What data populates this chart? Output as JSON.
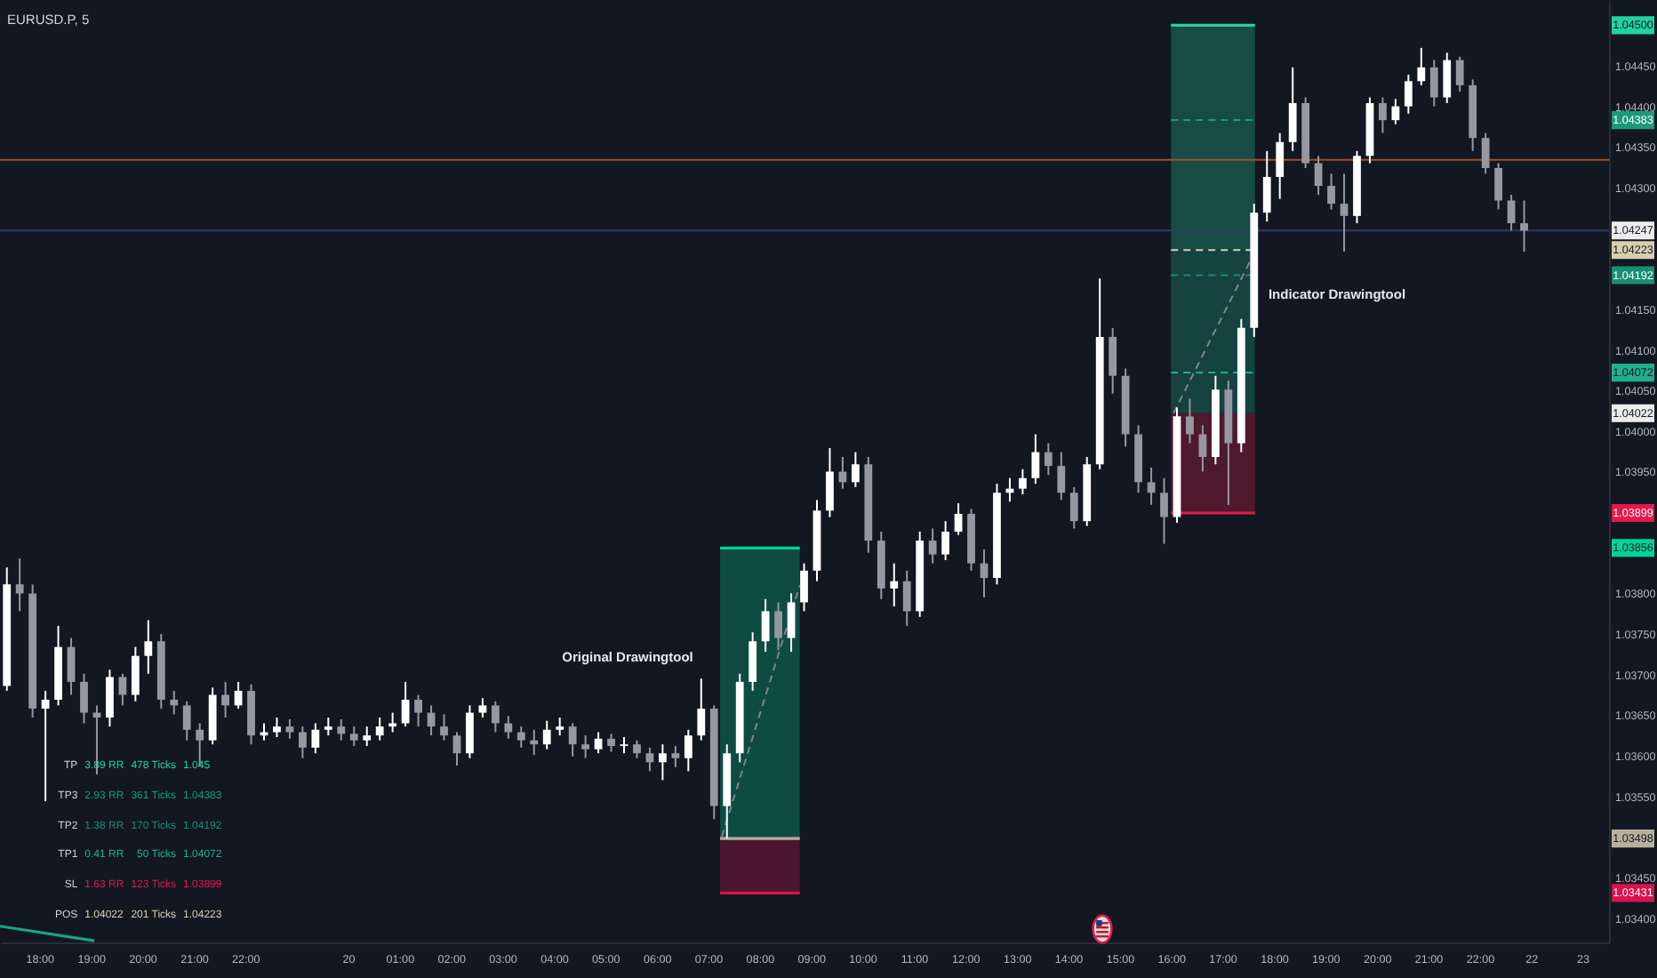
{
  "chart_data": {
    "type": "candlestick",
    "title": "EURUSD.P, 5",
    "xlim": [
      "--12-19T17:14",
      "--12-21T00:31"
    ],
    "ylim": [
      1.0337,
      1.04531
    ],
    "xticks": [
      {
        "value": "--12-19T18:00",
        "label": "18:00"
      },
      {
        "value": "--12-19T19:00",
        "label": "19:00"
      },
      {
        "value": "--12-19T20:00",
        "label": "20:00"
      },
      {
        "value": "--12-19T21:00",
        "label": "21:00"
      },
      {
        "value": "--12-19T22:00",
        "label": "22:00"
      },
      {
        "value": "--12-20T00:00",
        "label": "20"
      },
      {
        "value": "--12-20T01:00",
        "label": "01:00"
      },
      {
        "value": "--12-20T02:00",
        "label": "02:00"
      },
      {
        "value": "--12-20T03:00",
        "label": "03:00"
      },
      {
        "value": "--12-20T04:00",
        "label": "04:00"
      },
      {
        "value": "--12-20T05:00",
        "label": "05:00"
      },
      {
        "value": "--12-20T06:00",
        "label": "06:00"
      },
      {
        "value": "--12-20T07:00",
        "label": "07:00"
      },
      {
        "value": "--12-20T08:00",
        "label": "08:00"
      },
      {
        "value": "--12-20T09:00",
        "label": "09:00"
      },
      {
        "value": "--12-20T10:00",
        "label": "10:00"
      },
      {
        "value": "--12-20T11:00",
        "label": "11:00"
      },
      {
        "value": "--12-20T12:00",
        "label": "12:00"
      },
      {
        "value": "--12-20T13:00",
        "label": "13:00"
      },
      {
        "value": "--12-20T14:00",
        "label": "14:00"
      },
      {
        "value": "--12-20T15:00",
        "label": "15:00"
      },
      {
        "value": "--12-20T16:00",
        "label": "16:00"
      },
      {
        "value": "--12-20T17:00",
        "label": "17:00"
      },
      {
        "value": "--12-20T18:00",
        "label": "18:00"
      },
      {
        "value": "--12-20T19:00",
        "label": "19:00"
      },
      {
        "value": "--12-20T20:00",
        "label": "20:00"
      },
      {
        "value": "--12-20T21:00",
        "label": "21:00"
      },
      {
        "value": "--12-20T22:00",
        "label": "22:00"
      },
      {
        "value": "--12-20T23:00",
        "label": "22"
      },
      {
        "value": "--12-21T00:00",
        "label": "23"
      }
    ],
    "yticks": [
      {
        "value": 1.0445,
        "label": "1.04450"
      },
      {
        "value": 1.044,
        "label": "1.04400"
      },
      {
        "value": 1.0435,
        "label": "1.04350"
      },
      {
        "value": 1.043,
        "label": "1.04300"
      },
      {
        "value": 1.0415,
        "label": "1.04150"
      },
      {
        "value": 1.041,
        "label": "1.04100"
      },
      {
        "value": 1.0405,
        "label": "1.04050"
      },
      {
        "value": 1.04,
        "label": "1.04000"
      },
      {
        "value": 1.0395,
        "label": "1.03950"
      },
      {
        "value": 1.038,
        "label": "1.03800"
      },
      {
        "value": 1.0375,
        "label": "1.03750"
      },
      {
        "value": 1.037,
        "label": "1.03700"
      },
      {
        "value": 1.0365,
        "label": "1.03650"
      },
      {
        "value": 1.036,
        "label": "1.03600"
      },
      {
        "value": 1.0355,
        "label": "1.03550"
      },
      {
        "value": 1.0345,
        "label": "1.03450"
      },
      {
        "value": 1.034,
        "label": "1.03400"
      }
    ],
    "x": [
      "--12-19T17:22",
      "--12-19T17:37",
      "--12-19T17:52",
      "--12-19T18:07",
      "--12-19T18:22",
      "--12-19T18:37",
      "--12-19T18:52",
      "--12-19T19:07",
      "--12-19T19:22",
      "--12-19T19:37",
      "--12-19T19:52",
      "--12-19T20:07",
      "--12-19T20:22",
      "--12-19T20:37",
      "--12-19T20:52",
      "--12-19T21:07",
      "--12-19T21:22",
      "--12-19T21:37",
      "--12-19T21:52",
      "--12-19T22:07",
      "--12-19T22:22",
      "--12-19T22:37",
      "--12-19T22:52",
      "--12-19T23:07",
      "--12-19T23:22",
      "--12-19T23:37",
      "--12-19T23:52",
      "--12-20T00:07",
      "--12-20T00:22",
      "--12-20T00:37",
      "--12-20T00:52",
      "--12-20T01:07",
      "--12-20T01:22",
      "--12-20T01:37",
      "--12-20T01:52",
      "--12-20T02:07",
      "--12-20T02:22",
      "--12-20T02:37",
      "--12-20T02:52",
      "--12-20T03:07",
      "--12-20T03:22",
      "--12-20T03:37",
      "--12-20T03:52",
      "--12-20T04:07",
      "--12-20T04:22",
      "--12-20T04:37",
      "--12-20T04:52",
      "--12-20T05:07",
      "--12-20T05:22",
      "--12-20T05:37",
      "--12-20T05:52",
      "--12-20T06:07",
      "--12-20T06:22",
      "--12-20T06:37",
      "--12-20T06:52",
      "--12-20T07:07",
      "--12-20T07:22",
      "--12-20T07:37",
      "--12-20T07:52",
      "--12-20T08:07",
      "--12-20T08:22",
      "--12-20T08:37",
      "--12-20T08:52",
      "--12-20T09:07",
      "--12-20T09:22",
      "--12-20T09:37",
      "--12-20T09:52",
      "--12-20T10:07",
      "--12-20T10:22",
      "--12-20T10:37",
      "--12-20T10:52",
      "--12-20T11:07",
      "--12-20T11:22",
      "--12-20T11:37",
      "--12-20T11:52",
      "--12-20T12:07",
      "--12-20T12:22",
      "--12-20T12:37",
      "--12-20T12:52",
      "--12-20T13:07",
      "--12-20T13:22",
      "--12-20T13:37",
      "--12-20T13:52",
      "--12-20T14:07",
      "--12-20T14:22",
      "--12-20T14:37",
      "--12-20T14:52",
      "--12-20T15:07",
      "--12-20T15:22",
      "--12-20T15:37",
      "--12-20T15:52",
      "--12-20T16:07",
      "--12-20T16:22",
      "--12-20T16:37",
      "--12-20T16:52",
      "--12-20T17:07",
      "--12-20T17:22",
      "--12-20T17:37",
      "--12-20T17:52",
      "--12-20T18:07",
      "--12-20T18:22",
      "--12-20T18:37",
      "--12-20T18:52",
      "--12-20T19:07",
      "--12-20T19:22",
      "--12-20T19:37",
      "--12-20T19:52",
      "--12-20T20:07",
      "--12-20T20:22",
      "--12-20T20:37",
      "--12-20T20:52",
      "--12-20T21:07",
      "--12-20T21:22",
      "--12-20T21:37",
      "--12-20T21:52",
      "--12-20T22:07",
      "--12-20T22:22",
      "--12-20T22:37",
      "--12-20T22:52"
    ],
    "ohlc": [
      [
        1.03686,
        1.03832,
        1.0368,
        1.03811
      ],
      [
        1.03811,
        1.03843,
        1.03778,
        1.038
      ],
      [
        1.038,
        1.03811,
        1.03647,
        1.03658
      ],
      [
        1.03658,
        1.0368,
        1.03544,
        1.03669
      ],
      [
        1.03669,
        1.0376,
        1.03662,
        1.03734
      ],
      [
        1.03734,
        1.03745,
        1.03675,
        1.03691
      ],
      [
        1.03691,
        1.03701,
        1.0364,
        1.03653
      ],
      [
        1.03653,
        1.03662,
        1.03577,
        1.03647
      ],
      [
        1.03647,
        1.03706,
        1.03636,
        1.03697
      ],
      [
        1.03697,
        1.03701,
        1.03662,
        1.03675
      ],
      [
        1.03675,
        1.03734,
        1.03667,
        1.03723
      ],
      [
        1.03723,
        1.03767,
        1.03701,
        1.03741
      ],
      [
        1.03741,
        1.0375,
        1.03658,
        1.03669
      ],
      [
        1.03669,
        1.0368,
        1.03651,
        1.03662
      ],
      [
        1.03662,
        1.03667,
        1.03619,
        1.03632
      ],
      [
        1.03632,
        1.0364,
        1.03588,
        1.03619
      ],
      [
        1.03619,
        1.03684,
        1.03614,
        1.03675
      ],
      [
        1.03675,
        1.03691,
        1.03647,
        1.03662
      ],
      [
        1.03662,
        1.03691,
        1.03658,
        1.0368
      ],
      [
        1.0368,
        1.03688,
        1.03614,
        1.03625
      ],
      [
        1.03625,
        1.0364,
        1.03619,
        1.03629
      ],
      [
        1.03629,
        1.03647,
        1.03623,
        1.03636
      ],
      [
        1.03636,
        1.03645,
        1.03621,
        1.03629
      ],
      [
        1.03629,
        1.03636,
        1.03597,
        1.0361
      ],
      [
        1.0361,
        1.0364,
        1.03603,
        1.03632
      ],
      [
        1.03632,
        1.03647,
        1.03625,
        1.03636
      ],
      [
        1.03636,
        1.03645,
        1.03619,
        1.03627
      ],
      [
        1.03627,
        1.03636,
        1.03612,
        1.03619
      ],
      [
        1.03619,
        1.03636,
        1.03612,
        1.03625
      ],
      [
        1.03625,
        1.03647,
        1.03619,
        1.03636
      ],
      [
        1.03636,
        1.03653,
        1.03629,
        1.0364
      ],
      [
        1.0364,
        1.03691,
        1.03636,
        1.03669
      ],
      [
        1.03669,
        1.03675,
        1.03636,
        1.03653
      ],
      [
        1.03653,
        1.03662,
        1.03625,
        1.03636
      ],
      [
        1.03636,
        1.03651,
        1.03619,
        1.03625
      ],
      [
        1.03625,
        1.03629,
        1.03588,
        1.03603
      ],
      [
        1.03603,
        1.03662,
        1.03597,
        1.03653
      ],
      [
        1.03653,
        1.03671,
        1.03647,
        1.03662
      ],
      [
        1.03662,
        1.03667,
        1.03629,
        1.0364
      ],
      [
        1.0364,
        1.03649,
        1.03621,
        1.03629
      ],
      [
        1.03629,
        1.03636,
        1.0361,
        1.03619
      ],
      [
        1.03619,
        1.03632,
        1.03601,
        1.03614
      ],
      [
        1.03614,
        1.03643,
        1.03608,
        1.03632
      ],
      [
        1.03632,
        1.03647,
        1.03625,
        1.03636
      ],
      [
        1.03636,
        1.0364,
        1.03599,
        1.03614
      ],
      [
        1.03614,
        1.03625,
        1.03597,
        1.03608
      ],
      [
        1.03608,
        1.03629,
        1.03603,
        1.03621
      ],
      [
        1.03621,
        1.03627,
        1.03605,
        1.03612
      ],
      [
        1.03612,
        1.03623,
        1.03603,
        1.03614
      ],
      [
        1.03614,
        1.03619,
        1.03597,
        1.03603
      ],
      [
        1.03603,
        1.0361,
        1.03581,
        1.03592
      ],
      [
        1.03592,
        1.03614,
        1.0357,
        1.03603
      ],
      [
        1.03603,
        1.03612,
        1.03586,
        1.03597
      ],
      [
        1.03597,
        1.03632,
        1.03581,
        1.03625
      ],
      [
        1.03625,
        1.03695,
        1.03619,
        1.03658
      ],
      [
        1.03658,
        1.03662,
        1.03522,
        1.03538
      ],
      [
        1.03538,
        1.03614,
        1.03498,
        1.03603
      ],
      [
        1.03603,
        1.03701,
        1.03592,
        1.03691
      ],
      [
        1.03691,
        1.03752,
        1.0368,
        1.03741
      ],
      [
        1.03741,
        1.03793,
        1.03728,
        1.03778
      ],
      [
        1.03778,
        1.03789,
        1.0373,
        1.03745
      ],
      [
        1.03745,
        1.038,
        1.03728,
        1.03789
      ],
      [
        1.03789,
        1.03837,
        1.03778,
        1.03828
      ],
      [
        1.03828,
        1.03915,
        1.03815,
        1.03902
      ],
      [
        1.03902,
        1.03979,
        1.03894,
        1.0395
      ],
      [
        1.0395,
        1.03968,
        1.03929,
        1.03937
      ],
      [
        1.03937,
        1.03974,
        1.03931,
        1.03959
      ],
      [
        1.03959,
        1.03968,
        1.0385,
        1.03865
      ],
      [
        1.03865,
        1.03876,
        1.03793,
        1.03806
      ],
      [
        1.03806,
        1.03837,
        1.03784,
        1.03815
      ],
      [
        1.03815,
        1.03828,
        1.0376,
        1.03778
      ],
      [
        1.03778,
        1.03876,
        1.03771,
        1.03865
      ],
      [
        1.03865,
        1.0388,
        1.03837,
        1.03848
      ],
      [
        1.03848,
        1.03889,
        1.03841,
        1.03876
      ],
      [
        1.03876,
        1.03911,
        1.03872,
        1.03898
      ],
      [
        1.03898,
        1.03904,
        1.03828,
        1.03837
      ],
      [
        1.03837,
        1.03854,
        1.03795,
        1.03819
      ],
      [
        1.03819,
        1.03935,
        1.03811,
        1.03924
      ],
      [
        1.03924,
        1.03942,
        1.03913,
        1.03929
      ],
      [
        1.03929,
        1.03953,
        1.03922,
        1.03942
      ],
      [
        1.03942,
        1.03996,
        1.03935,
        1.03974
      ],
      [
        1.03974,
        1.03985,
        1.03946,
        1.03957
      ],
      [
        1.03957,
        1.03974,
        1.03915,
        1.03924
      ],
      [
        1.03924,
        1.03931,
        1.0388,
        1.03889
      ],
      [
        1.03889,
        1.03968,
        1.03883,
        1.03959
      ],
      [
        1.03959,
        1.04188,
        1.03953,
        1.04116
      ],
      [
        1.04116,
        1.04127,
        1.04046,
        1.04068
      ],
      [
        1.04068,
        1.04077,
        1.03981,
        1.03996
      ],
      [
        1.03996,
        1.04007,
        1.03924,
        1.03937
      ],
      [
        1.03937,
        1.03955,
        1.03909,
        1.03924
      ],
      [
        1.03924,
        1.03942,
        1.03861,
        1.03894
      ],
      [
        1.03894,
        1.04029,
        1.03887,
        1.04018
      ],
      [
        1.04018,
        1.0404,
        1.03985,
        1.03996
      ],
      [
        1.03996,
        1.04007,
        1.0395,
        1.03968
      ],
      [
        1.03968,
        1.04068,
        1.03959,
        1.04051
      ],
      [
        1.04051,
        1.04062,
        1.03909,
        1.03985
      ],
      [
        1.03985,
        1.04138,
        1.03974,
        1.04127
      ],
      [
        1.04127,
        1.0428,
        1.04116,
        1.04269
      ],
      [
        1.04269,
        1.04345,
        1.04258,
        1.04313
      ],
      [
        1.04313,
        1.04367,
        1.04286,
        1.04356
      ],
      [
        1.04356,
        1.04448,
        1.04345,
        1.04404
      ],
      [
        1.04404,
        1.04411,
        1.04324,
        1.0433
      ],
      [
        1.0433,
        1.04339,
        1.04291,
        1.04302
      ],
      [
        1.04302,
        1.04317,
        1.04273,
        1.0428
      ],
      [
        1.0428,
        1.04317,
        1.04221,
        1.04265
      ],
      [
        1.04265,
        1.04345,
        1.04256,
        1.04339
      ],
      [
        1.04339,
        1.04411,
        1.0433,
        1.04404
      ],
      [
        1.04404,
        1.04411,
        1.04367,
        1.04383
      ],
      [
        1.04383,
        1.04409,
        1.04378,
        1.044
      ],
      [
        1.044,
        1.04439,
        1.04391,
        1.04431
      ],
      [
        1.04431,
        1.04472,
        1.04426,
        1.04448
      ],
      [
        1.04448,
        1.04457,
        1.044,
        1.04411
      ],
      [
        1.04411,
        1.04466,
        1.04404,
        1.04457
      ],
      [
        1.04457,
        1.04461,
        1.04418,
        1.04426
      ],
      [
        1.04426,
        1.04433,
        1.04345,
        1.04361
      ],
      [
        1.04361,
        1.04367,
        1.04317,
        1.04324
      ],
      [
        1.04324,
        1.0433,
        1.04273,
        1.04284
      ],
      [
        1.04284,
        1.04291,
        1.04247,
        1.04256
      ],
      [
        1.04256,
        1.04284,
        1.04221,
        1.04247
      ]
    ],
    "colors": [
      "#ffffff",
      "#9598a1",
      "#9598a1",
      "#ffffff",
      "#ffffff",
      "#9598a1",
      "#9598a1",
      "#9598a1",
      "#ffffff",
      "#9598a1",
      "#ffffff",
      "#ffffff",
      "#9598a1",
      "#9598a1",
      "#9598a1",
      "#9598a1",
      "#ffffff",
      "#9598a1",
      "#ffffff",
      "#9598a1",
      "#ffffff",
      "#ffffff",
      "#9598a1",
      "#9598a1",
      "#ffffff",
      "#ffffff",
      "#9598a1",
      "#9598a1",
      "#ffffff",
      "#ffffff",
      "#ffffff",
      "#ffffff",
      "#9598a1",
      "#9598a1",
      "#9598a1",
      "#9598a1",
      "#ffffff",
      "#ffffff",
      "#9598a1",
      "#9598a1",
      "#9598a1",
      "#9598a1",
      "#ffffff",
      "#ffffff",
      "#9598a1",
      "#9598a1",
      "#ffffff",
      "#9598a1",
      "#ffffff",
      "#9598a1",
      "#9598a1",
      "#ffffff",
      "#9598a1",
      "#ffffff",
      "#ffffff",
      "#9598a1",
      "#ffffff",
      "#ffffff",
      "#ffffff",
      "#ffffff",
      "#9598a1",
      "#ffffff",
      "#ffffff",
      "#ffffff",
      "#ffffff",
      "#9598a1",
      "#ffffff",
      "#9598a1",
      "#9598a1",
      "#ffffff",
      "#9598a1",
      "#ffffff",
      "#9598a1",
      "#ffffff",
      "#ffffff",
      "#9598a1",
      "#9598a1",
      "#ffffff",
      "#ffffff",
      "#ffffff",
      "#ffffff",
      "#9598a1",
      "#9598a1",
      "#9598a1",
      "#ffffff",
      "#ffffff",
      "#9598a1",
      "#9598a1",
      "#9598a1",
      "#9598a1",
      "#9598a1",
      "#ffffff",
      "#9598a1",
      "#9598a1",
      "#ffffff",
      "#9598a1",
      "#ffffff",
      "#ffffff",
      "#ffffff",
      "#ffffff",
      "#ffffff",
      "#9598a1",
      "#9598a1",
      "#9598a1",
      "#9598a1",
      "#ffffff",
      "#ffffff",
      "#9598a1",
      "#ffffff",
      "#ffffff",
      "#ffffff",
      "#9598a1",
      "#ffffff",
      "#9598a1",
      "#9598a1",
      "#9598a1",
      "#9598a1",
      "#9598a1",
      "#9598a1"
    ],
    "series": [
      {
        "type": "line",
        "x": [
          "--12-20T16:00",
          "--12-20T17:38"
        ],
        "values": [
          1.045,
          1.045
        ],
        "lower": [
          1.04223,
          1.04223
        ],
        "upper": [
          1.045,
          1.045
        ],
        "color": "#22d3a0",
        "line_style": "solid"
      },
      {
        "type": "line",
        "x": [
          "--12-20T16:00",
          "--12-20T17:38"
        ],
        "values": [
          1.04383,
          1.04383
        ],
        "color": "#1b9a7b",
        "line_style": "dashed"
      },
      {
        "type": "line",
        "x": [
          "--12-20T16:00",
          "--12-20T17:38"
        ],
        "values": [
          1.04192,
          1.04192
        ],
        "color": "#178f75",
        "line_style": "dashed"
      },
      {
        "type": "line",
        "x": [
          "--12-20T16:00",
          "--12-20T17:38"
        ],
        "values": [
          1.04072,
          1.04072
        ],
        "lower": [
          1.04022,
          1.04022
        ],
        "upper": [
          1.04223,
          1.04223
        ],
        "color": "#1fb08e",
        "line_style": "dashed"
      },
      {
        "type": "line",
        "x": [
          "--12-20T16:00",
          "--12-20T17:38"
        ],
        "values": [
          1.03899,
          1.03899
        ],
        "lower": [
          1.03899,
          1.03899
        ],
        "upper": [
          1.04022,
          1.04022
        ],
        "color": "#e5194b",
        "line_style": "solid"
      },
      {
        "type": "line",
        "x": [
          "--12-20T16:00",
          "--12-20T17:38"
        ],
        "values": [
          1.04223,
          1.04223
        ],
        "color": "#d8cfae",
        "line_style": "dashed"
      },
      {
        "type": "line",
        "x": [
          "--12-20T07:14",
          "--12-20T08:47"
        ],
        "values": [
          1.03856,
          1.03856
        ],
        "lower": [
          1.03498,
          1.03498
        ],
        "upper": [
          1.03856,
          1.03856
        ],
        "color": "#00d496",
        "line_style": "solid"
      },
      {
        "type": "line",
        "x": [
          "--12-20T07:14",
          "--12-20T08:47"
        ],
        "values": [
          1.03431,
          1.03431
        ],
        "lower": [
          1.03431,
          1.03431
        ],
        "upper": [
          1.03498,
          1.03498
        ],
        "color": "#d9134b",
        "line_style": "solid"
      },
      {
        "type": "line",
        "x": [
          "--12-20T07:14",
          "--12-20T08:47"
        ],
        "values": [
          1.03498,
          1.03498
        ],
        "color": "#b8b09a",
        "line_style": "solid"
      },
      {
        "type": "line",
        "x": [
          "--12-20T07:16",
          "--12-20T08:47"
        ],
        "values": [
          1.035,
          1.0381
        ],
        "color": "#7d8591",
        "line_style": "dashed"
      },
      {
        "type": "line",
        "x": [
          "--12-20T16:03",
          "--12-20T17:38"
        ],
        "values": [
          1.04022,
          1.04221
        ],
        "color": "#7d8591",
        "line_style": "dashed"
      },
      {
        "type": "line",
        "x": [
          "--12-19T17:14",
          "--12-19T19:04"
        ],
        "values": [
          1.0339,
          1.03372
        ],
        "color": "#1aa584",
        "line_style": "solid"
      }
    ],
    "ref_lines": [
      {
        "axis": "y",
        "value": 1.04334,
        "color": "#a0522d",
        "line_style": "solid"
      },
      {
        "axis": "y",
        "value": 1.04247,
        "color": "#2b3f66",
        "line_style": "solid",
        "label": "1.04247"
      }
    ],
    "annotations": [
      "Original Drawingtool",
      "Indicator Drawingtool",
      {
        "text": "1.04500",
        "y": 1.045
      },
      {
        "text": "1.04383",
        "y": 1.04383
      },
      {
        "text": "1.04223",
        "y": 1.04223
      },
      {
        "text": "1.04192",
        "y": 1.04192
      },
      {
        "text": "1.04072",
        "y": 1.04072
      },
      {
        "text": "1.04022",
        "y": 1.04022
      },
      {
        "text": "1.03899",
        "y": 1.03899
      },
      {
        "text": "1.03856",
        "y": 1.03856
      },
      {
        "text": "1.03498",
        "y": 1.03498
      },
      {
        "text": "1.03431",
        "y": 1.03431
      },
      "TP",
      "3.89 RR",
      "478 Ticks",
      "1.045",
      "TP3",
      "2.93 RR",
      "361 Ticks",
      "1.04383",
      "TP2",
      "1.38 RR",
      "170 Ticks",
      "1.04192",
      "TP1",
      "0.41 RR",
      "50 Ticks",
      "1.04072",
      "SL",
      "1.63 RR",
      "123 Ticks",
      "1.03899",
      "POS",
      "1.04022",
      "201 Ticks",
      "1.04223"
    ]
  }
}
